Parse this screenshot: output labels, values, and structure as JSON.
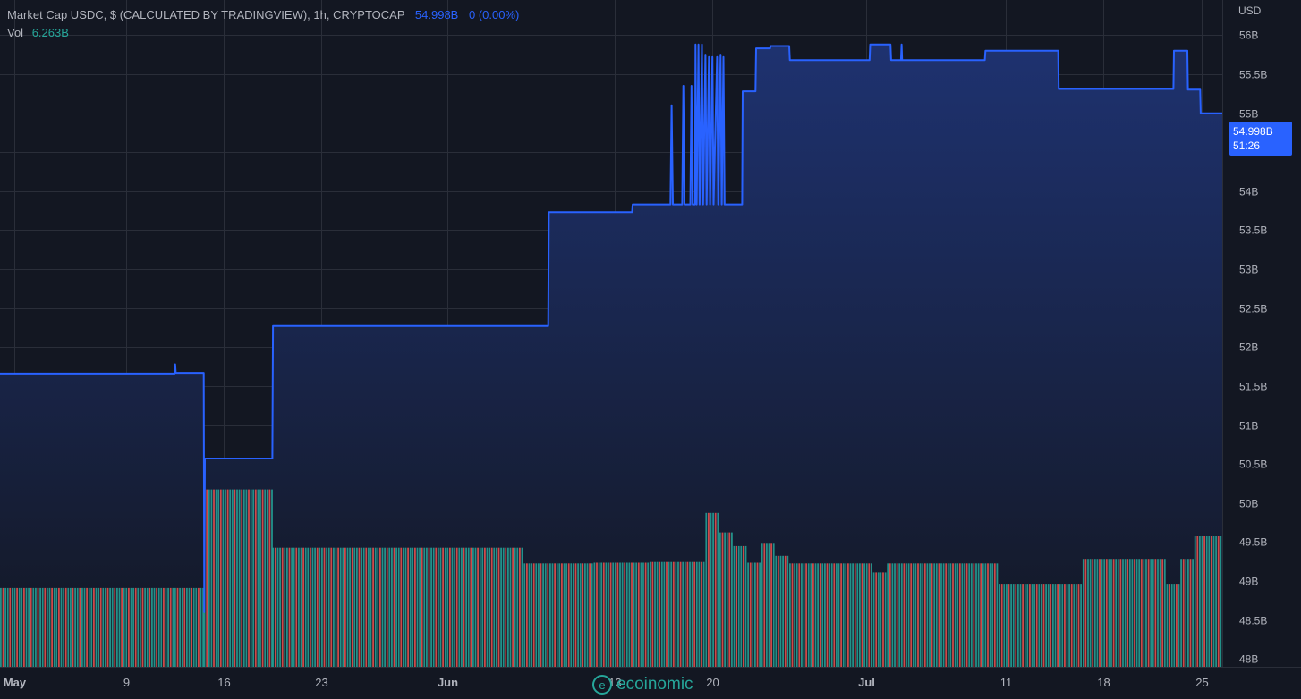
{
  "legend": {
    "title": "Market Cap USDC, $ (CALCULATED BY TRADINGVIEW), 1h, CRYPTOCAP",
    "last_value": "54.998B",
    "change": "0 (0.00%)",
    "vol_label": "Vol",
    "vol_value": "6.263B"
  },
  "price_axis": {
    "currency": "USD"
  },
  "last_price_tag": {
    "price": "54.998B",
    "countdown": "51:26"
  },
  "watermark": {
    "logo_glyph": "e",
    "text": "ecoinomic"
  },
  "colors": {
    "background": "#131722",
    "line": "#2962ff",
    "area_top": "#1e3270",
    "area_bottom": "#131722",
    "volume_up": "#26a69a",
    "volume_down": "#ef5350",
    "grid": "#2a2e39",
    "axis_text": "#b2b5be"
  },
  "chart_data": {
    "type": "area",
    "title": "Market Cap USDC, $ (CALCULATED BY TRADINGVIEW), 1h, CRYPTOCAP",
    "ylabel": "USD",
    "ylim": [
      47.9,
      56.45
    ],
    "xlim": [
      "2022-04-30",
      "2022-07-26T12:00"
    ],
    "grid": true,
    "y_ticks": [
      {
        "value": 56,
        "label": "56B"
      },
      {
        "value": 55.5,
        "label": "55.5B"
      },
      {
        "value": 55,
        "label": "55B"
      },
      {
        "value": 54.5,
        "label": "54.5B"
      },
      {
        "value": 54,
        "label": "54B"
      },
      {
        "value": 53.5,
        "label": "53.5B"
      },
      {
        "value": 53,
        "label": "53B"
      },
      {
        "value": 52.5,
        "label": "52.5B"
      },
      {
        "value": 52,
        "label": "52B"
      },
      {
        "value": 51.5,
        "label": "51.5B"
      },
      {
        "value": 51,
        "label": "51B"
      },
      {
        "value": 50.5,
        "label": "50.5B"
      },
      {
        "value": 50,
        "label": "50B"
      },
      {
        "value": 49.5,
        "label": "49.5B"
      },
      {
        "value": 49,
        "label": "49B"
      },
      {
        "value": 48.5,
        "label": "48.5B"
      },
      {
        "value": 48,
        "label": "48B"
      }
    ],
    "x_ticks": [
      {
        "date": "2022-05-01",
        "label": "May",
        "bold": true
      },
      {
        "date": "2022-05-09",
        "label": "9"
      },
      {
        "date": "2022-05-16",
        "label": "16"
      },
      {
        "date": "2022-05-23",
        "label": "23"
      },
      {
        "date": "2022-06-01",
        "label": "Jun",
        "bold": true
      },
      {
        "date": "2022-06-13",
        "label": "13"
      },
      {
        "date": "2022-06-20",
        "label": "20"
      },
      {
        "date": "2022-07-01",
        "label": "Jul",
        "bold": true
      },
      {
        "date": "2022-07-11",
        "label": "11"
      },
      {
        "date": "2022-07-18",
        "label": "18"
      },
      {
        "date": "2022-07-25",
        "label": "25"
      }
    ],
    "series": [
      {
        "name": "Market Cap USDC",
        "points": [
          [
            "2022-04-30T00:00",
            51.66
          ],
          [
            "2022-05-12T12:00",
            51.66
          ],
          [
            "2022-05-12T13:00",
            51.78
          ],
          [
            "2022-05-12T14:00",
            51.67
          ],
          [
            "2022-05-14T14:00",
            51.67
          ],
          [
            "2022-05-14T15:00",
            48.6
          ],
          [
            "2022-05-14T16:00",
            50.57
          ],
          [
            "2022-05-19T12:00",
            50.57
          ],
          [
            "2022-05-19T13:00",
            52.27
          ],
          [
            "2022-06-08T06:00",
            52.27
          ],
          [
            "2022-06-08T07:00",
            53.73
          ],
          [
            "2022-06-14T06:00",
            53.73
          ],
          [
            "2022-06-14T07:00",
            53.83
          ],
          [
            "2022-06-17T00:00",
            53.83
          ],
          [
            "2022-06-17T02:00",
            55.1
          ],
          [
            "2022-06-17T04:00",
            53.83
          ],
          [
            "2022-06-17T20:00",
            53.83
          ],
          [
            "2022-06-17T22:00",
            55.35
          ],
          [
            "2022-06-18T00:00",
            53.83
          ],
          [
            "2022-06-18T10:00",
            53.83
          ],
          [
            "2022-06-18T12:00",
            55.35
          ],
          [
            "2022-06-18T14:00",
            53.83
          ],
          [
            "2022-06-18T18:00",
            53.83
          ],
          [
            "2022-06-18T19:00",
            55.88
          ],
          [
            "2022-06-18T21:00",
            53.83
          ],
          [
            "2022-06-19T00:00",
            55.88
          ],
          [
            "2022-06-19T02:00",
            53.83
          ],
          [
            "2022-06-19T06:00",
            55.88
          ],
          [
            "2022-06-19T08:00",
            53.83
          ],
          [
            "2022-06-19T12:00",
            55.75
          ],
          [
            "2022-06-19T14:00",
            53.83
          ],
          [
            "2022-06-19T18:00",
            55.72
          ],
          [
            "2022-06-19T20:00",
            53.83
          ],
          [
            "2022-06-20T00:00",
            55.72
          ],
          [
            "2022-06-20T02:00",
            53.83
          ],
          [
            "2022-06-20T08:00",
            55.72
          ],
          [
            "2022-06-20T10:00",
            53.83
          ],
          [
            "2022-06-20T14:00",
            55.75
          ],
          [
            "2022-06-20T16:00",
            53.83
          ],
          [
            "2022-06-20T19:00",
            55.72
          ],
          [
            "2022-06-20T21:00",
            53.83
          ],
          [
            "2022-06-22T03:00",
            53.83
          ],
          [
            "2022-06-22T04:00",
            55.28
          ],
          [
            "2022-06-23T02:00",
            55.28
          ],
          [
            "2022-06-23T03:00",
            55.83
          ],
          [
            "2022-06-24T03:00",
            55.83
          ],
          [
            "2022-06-24T04:00",
            55.86
          ],
          [
            "2022-06-25T12:00",
            55.86
          ],
          [
            "2022-06-25T13:00",
            55.68
          ],
          [
            "2022-07-01T06:00",
            55.68
          ],
          [
            "2022-07-01T07:00",
            55.88
          ],
          [
            "2022-07-02T18:00",
            55.88
          ],
          [
            "2022-07-02T19:00",
            55.68
          ],
          [
            "2022-07-03T12:00",
            55.68
          ],
          [
            "2022-07-03T13:00",
            55.88
          ],
          [
            "2022-07-03T14:00",
            55.68
          ],
          [
            "2022-07-09T12:00",
            55.68
          ],
          [
            "2022-07-09T13:00",
            55.8
          ],
          [
            "2022-07-14T18:00",
            55.8
          ],
          [
            "2022-07-14T19:00",
            55.31
          ],
          [
            "2022-07-23T00:00",
            55.31
          ],
          [
            "2022-07-23T01:00",
            55.8
          ],
          [
            "2022-07-24T00:00",
            55.8
          ],
          [
            "2022-07-24T01:00",
            55.3
          ],
          [
            "2022-07-24T22:00",
            55.3
          ],
          [
            "2022-07-24T23:00",
            54.998
          ],
          [
            "2022-07-26T12:00",
            54.998
          ]
        ]
      },
      {
        "name": "Vol",
        "style": "columns",
        "y_top_fraction": 0.266,
        "segments": [
          {
            "from": "2022-04-30T00:00",
            "to": "2022-05-14T14:00",
            "level": 0.444
          },
          {
            "from": "2022-05-14T14:00",
            "to": "2022-05-19T12:00",
            "level": 1.0
          },
          {
            "from": "2022-05-19T12:00",
            "to": "2022-06-06T12:00",
            "level": 0.672
          },
          {
            "from": "2022-06-06T12:00",
            "to": "2022-06-11T12:00",
            "level": 0.583
          },
          {
            "from": "2022-06-11T12:00",
            "to": "2022-06-15T12:00",
            "level": 0.587
          },
          {
            "from": "2022-06-15T12:00",
            "to": "2022-06-19T12:00",
            "level": 0.591
          },
          {
            "from": "2022-06-19T12:00",
            "to": "2022-06-20T12:00",
            "level": 0.868
          },
          {
            "from": "2022-06-20T12:00",
            "to": "2022-06-21T12:00",
            "level": 0.758
          },
          {
            "from": "2022-06-21T12:00",
            "to": "2022-06-22T12:00",
            "level": 0.681
          },
          {
            "from": "2022-06-22T12:00",
            "to": "2022-06-23T12:00",
            "level": 0.587
          },
          {
            "from": "2022-06-23T12:00",
            "to": "2022-06-24T12:00",
            "level": 0.694
          },
          {
            "from": "2022-06-24T12:00",
            "to": "2022-06-25T12:00",
            "level": 0.626
          },
          {
            "from": "2022-06-25T12:00",
            "to": "2022-07-01T12:00",
            "level": 0.583
          },
          {
            "from": "2022-07-01T12:00",
            "to": "2022-07-02T12:00",
            "level": 0.532
          },
          {
            "from": "2022-07-02T12:00",
            "to": "2022-07-10T12:00",
            "level": 0.583
          },
          {
            "from": "2022-07-10T12:00",
            "to": "2022-07-16T12:00",
            "level": 0.468
          },
          {
            "from": "2022-07-16T12:00",
            "to": "2022-07-22T12:00",
            "level": 0.609
          },
          {
            "from": "2022-07-22T12:00",
            "to": "2022-07-23T12:00",
            "level": 0.468
          },
          {
            "from": "2022-07-23T12:00",
            "to": "2022-07-24T12:00",
            "level": 0.609
          },
          {
            "from": "2022-07-24T12:00",
            "to": "2022-07-26T12:00",
            "level": 0.736
          }
        ]
      }
    ],
    "last_value": 54.998
  }
}
